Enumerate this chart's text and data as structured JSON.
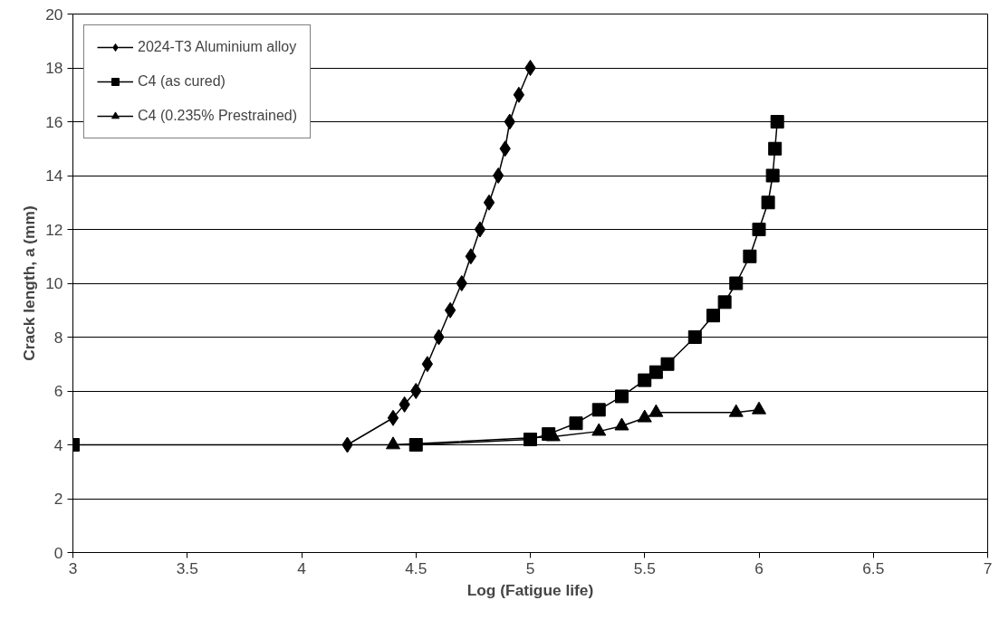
{
  "chart_data": {
    "type": "line",
    "xlabel": "Log (Fatigue life)",
    "ylabel": "Crack length, a (mm)",
    "xlim": [
      3,
      7
    ],
    "xticks": [
      3,
      3.5,
      4,
      4.5,
      5,
      5.5,
      6,
      6.5,
      7
    ],
    "ylim": [
      0,
      20
    ],
    "yticks": [
      0,
      2,
      4,
      6,
      8,
      10,
      12,
      14,
      16,
      18,
      20
    ],
    "grid": "y",
    "legend": "top left",
    "line_style": "solid",
    "series": [
      {
        "name": "2024-T3 Aluminium alloy",
        "color": "#000000",
        "marker": "diamond",
        "x": [
          4.2,
          4.4,
          4.45,
          4.5,
          4.55,
          4.6,
          4.65,
          4.7,
          4.74,
          4.78,
          4.82,
          4.86,
          4.89,
          4.91,
          4.95,
          5.0
        ],
        "values": [
          4,
          5,
          5.5,
          6,
          7,
          8,
          9,
          10,
          11,
          12,
          13,
          14,
          15,
          16,
          17,
          18
        ]
      },
      {
        "name": "C4 (as cured)",
        "color": "#000000",
        "marker": "square",
        "x": [
          3,
          4.5,
          5.0,
          5.08,
          5.2,
          5.3,
          5.4,
          5.5,
          5.55,
          5.6,
          5.72,
          5.8,
          5.85,
          5.9,
          5.96,
          6.0,
          6.04,
          6.06,
          6.07,
          6.08
        ],
        "values": [
          4,
          4,
          4.2,
          4.4,
          4.8,
          5.3,
          5.8,
          6.4,
          6.7,
          7.0,
          8.0,
          8.8,
          9.3,
          10,
          11,
          12,
          13,
          14,
          15,
          16
        ]
      },
      {
        "name": "C4 (0.235% Prestrained)",
        "color": "#000000",
        "marker": "triangle",
        "x": [
          4.4,
          5.1,
          5.3,
          5.4,
          5.5,
          5.55,
          5.9,
          6.0
        ],
        "values": [
          4,
          4.3,
          4.5,
          4.7,
          5.0,
          5.2,
          5.2,
          5.3
        ]
      }
    ]
  }
}
